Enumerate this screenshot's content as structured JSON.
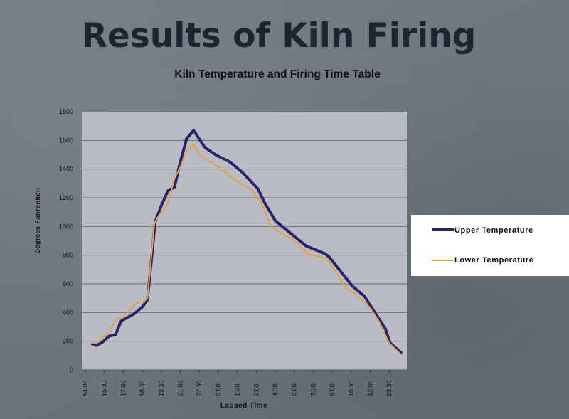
{
  "slide": {
    "title": "Results of Kiln Firing"
  },
  "chart_data": {
    "type": "line",
    "title": "Kiln Temperature and Firing Time Table",
    "xlabel": "Lapsed Time",
    "ylabel": "Degrees Fahrenheit",
    "x_unit": "hours elapsed from 14:00",
    "xlim": [
      -0.3,
      25.4
    ],
    "ylim": [
      0,
      1800
    ],
    "yticks": [
      0,
      200,
      400,
      600,
      800,
      1000,
      1200,
      1400,
      1600,
      1800
    ],
    "xtick_labels": [
      "14:00",
      "15:30",
      "17:00",
      "18:30",
      "19:30",
      "21:00",
      "22:30",
      "0:00",
      "1:30",
      "3:00",
      "4:30",
      "6:00",
      "7:30",
      "9:00",
      "10:30",
      "12:00",
      "13:30"
    ],
    "grid": "horizontal",
    "legend": "right",
    "series": [
      {
        "name": "Upper Temperature",
        "color": "#2a2470",
        "x": [
          0.45,
          0.84,
          1.29,
          1.85,
          2.36,
          2.81,
          3.2,
          3.82,
          4.5,
          4.89,
          5.51,
          6.01,
          6.52,
          7.03,
          7.42,
          7.98,
          8.54,
          9.44,
          10.28,
          11.41,
          12.36,
          13.6,
          14.16,
          15.0,
          15.9,
          17.42,
          18.94,
          19.28,
          21.08,
          22.03,
          22.87,
          23.72,
          24.05,
          25.01
        ],
        "y": [
          185,
          170,
          190,
          235,
          245,
          340,
          360,
          390,
          440,
          490,
          1035,
          1150,
          1250,
          1275,
          1425,
          1610,
          1670,
          1550,
          1500,
          1450,
          1380,
          1265,
          1165,
          1040,
          975,
          865,
          810,
          785,
          585,
          515,
          400,
          285,
          190,
          115
        ]
      },
      {
        "name": "Lower Temperature",
        "color": "#e8a040",
        "x": [
          0.45,
          0.84,
          1.85,
          2.42,
          3.09,
          4.05,
          4.61,
          4.89,
          5.45,
          5.9,
          6.46,
          7.03,
          7.47,
          7.98,
          8.54,
          8.99,
          10.51,
          11.97,
          13.09,
          13.88,
          14.61,
          15.17,
          16.3,
          17.53,
          19.11,
          20.63,
          21.19,
          22.48,
          23.21,
          23.99,
          25.01
        ],
        "y": [
          190,
          185,
          265,
          350,
          375,
          470,
          475,
          500,
          1025,
          1090,
          1150,
          1335,
          1410,
          1525,
          1570,
          1500,
          1415,
          1315,
          1260,
          1165,
          1010,
          965,
          915,
          810,
          775,
          565,
          540,
          435,
          335,
          190,
          100
        ]
      }
    ]
  }
}
